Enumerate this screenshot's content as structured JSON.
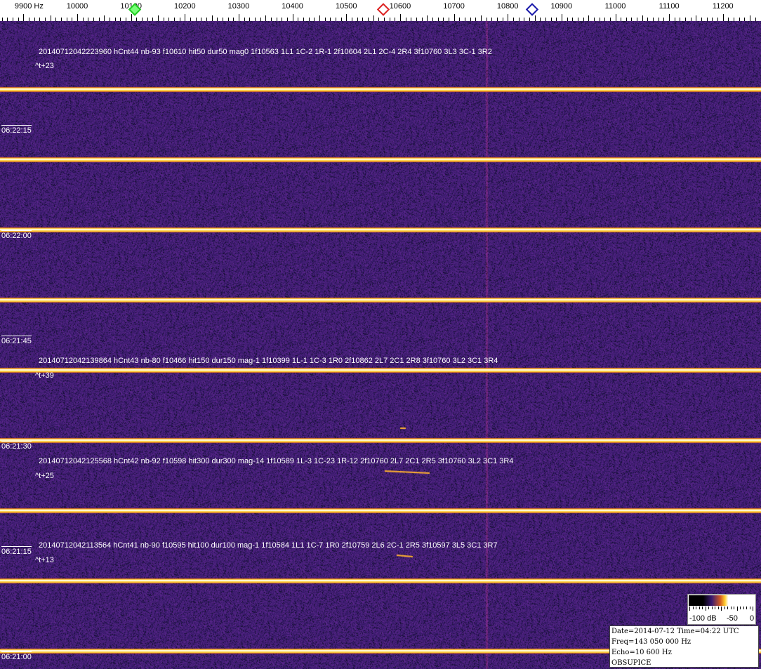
{
  "chart_data": {
    "type": "heatmap",
    "x_unit": "Hz",
    "x_ticks": [
      9900,
      10000,
      10100,
      10200,
      10300,
      10400,
      10500,
      10600,
      10700,
      10800,
      10900,
      11000,
      11100,
      11200
    ],
    "y_ticks": [
      "06:22:15",
      "06:22:00",
      "06:21:45",
      "06:21:30",
      "06:21:15",
      "06:21:00"
    ],
    "carrier_frequency_hz": 10760,
    "colorbar": {
      "labels": [
        "-100 dB",
        "-50",
        "0"
      ],
      "range_db": [
        -100,
        0
      ]
    },
    "markers": [
      {
        "freq_hz": 10107,
        "color": "#22cc22"
      },
      {
        "freq_hz": 10569,
        "color": "#dd2222"
      },
      {
        "freq_hz": 10845,
        "color": "#1a1aaa"
      }
    ],
    "colors": {
      "background": "#2e2268",
      "noise": "#5a2a90",
      "signal": "#ffd040"
    }
  },
  "annotations": [
    {
      "text": "20140712042223960 hCnt44 nb-93 f10610 hit50 dur50 mag0 1f10563 1L1 1C-2 1R-1 2f10604 2L1 2C-4 2R4 3f10760 3L3 3C-1 3R2",
      "tplus": "^t+23"
    },
    {
      "text": "20140712042139864 hCnt43 nb-80 f10466 hit150 dur150 mag-1 1f10399 1L-1 1C-3 1R0 2f10862 2L7 2C1 2R8 3f10760 3L2 3C1 3R4",
      "tplus": "^t+39"
    },
    {
      "text": "20140712042125568 hCnt42 nb-92 f10598 hit300 dur300 mag-14 1f10589 1L-3 1C-23 1R-12 2f10760 2L7 2C1 2R5 3f10760 3L2 3C1 3R4",
      "tplus": "^t+25"
    },
    {
      "text": "20140712042113564 hCnt41 nb-90 f10595 hit100 dur100 mag-1 1f10584 1L1 1C-7 1R0 2f10759 2L6 2C-1 2R5 3f10597 3L5 3C1 3R7",
      "tplus": "^t+13"
    }
  ],
  "axis": {
    "unit": "Hz"
  },
  "info": {
    "date_time": "Date=2014-07-12 Time=04:22 UTC",
    "freq": "Freq=143 050 000 Hz",
    "echo": "Echo=10 600 Hz",
    "station": "OBSUPICE"
  }
}
